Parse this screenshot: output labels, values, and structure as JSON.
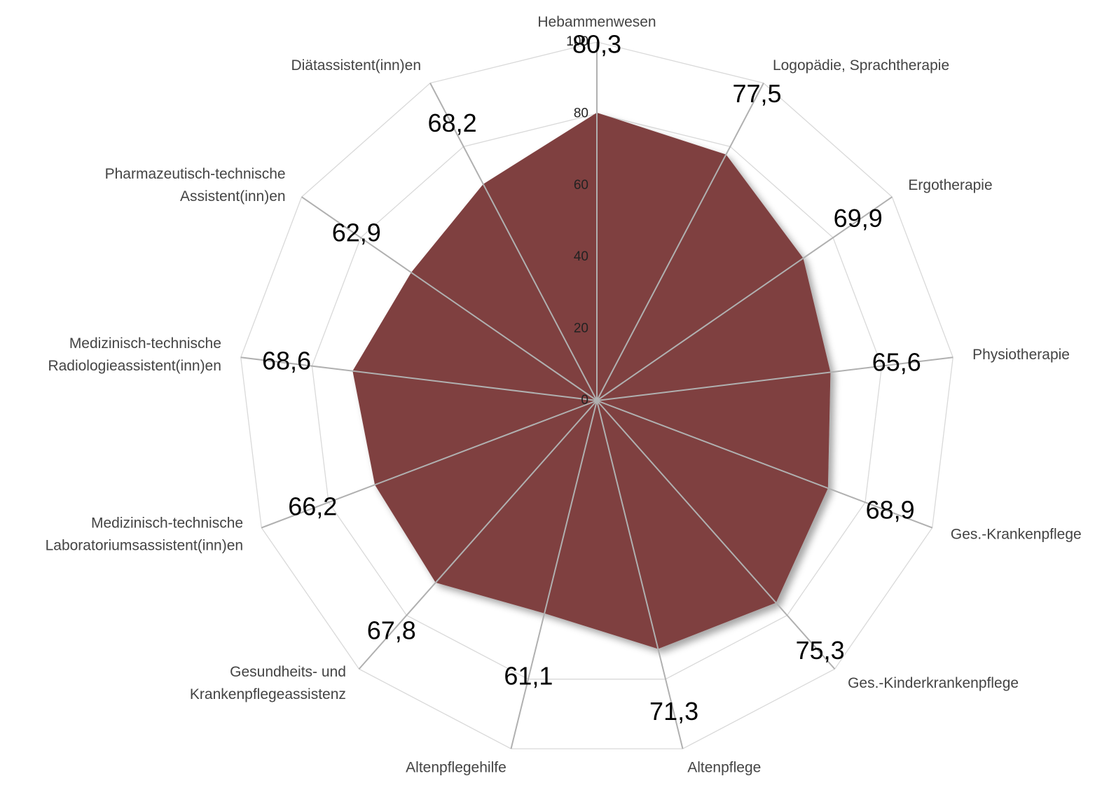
{
  "chart_data": {
    "type": "radar",
    "categories": [
      [
        "Hebammenwesen"
      ],
      [
        "Logopädie, Sprachtherapie"
      ],
      [
        "Ergotherapie"
      ],
      [
        "Physiotherapie"
      ],
      [
        "Ges.-Krankenpflege"
      ],
      [
        "Ges.-Kinderkrankenpflege"
      ],
      [
        "Altenpflege"
      ],
      [
        "Altenpflegehilfe"
      ],
      [
        "Gesundheits- und",
        "Krankenpflegeassistenz"
      ],
      [
        "Medizinisch-technische",
        "Laboratoriumsassistent(inn)en"
      ],
      [
        "Medizinisch-technische",
        "Radiologieassistent(inn)en"
      ],
      [
        "Pharmazeutisch-technische",
        "Assistent(inn)en"
      ],
      [
        "Diätassistent(inn)en"
      ]
    ],
    "values": [
      80.3,
      77.5,
      69.9,
      65.6,
      68.9,
      75.3,
      71.3,
      61.1,
      67.8,
      66.2,
      68.6,
      62.9,
      68.2
    ],
    "value_labels": [
      "80,3",
      "77,5",
      "69,9",
      "65,6",
      "68,9",
      "75,3",
      "71,3",
      "61,1",
      "67,8",
      "66,2",
      "68,6",
      "62,9",
      "68,2"
    ],
    "color": "#7f3f3f",
    "rlim": [
      0,
      100
    ],
    "rticks": [
      0,
      20,
      40,
      60,
      80,
      100
    ],
    "grid": true
  }
}
